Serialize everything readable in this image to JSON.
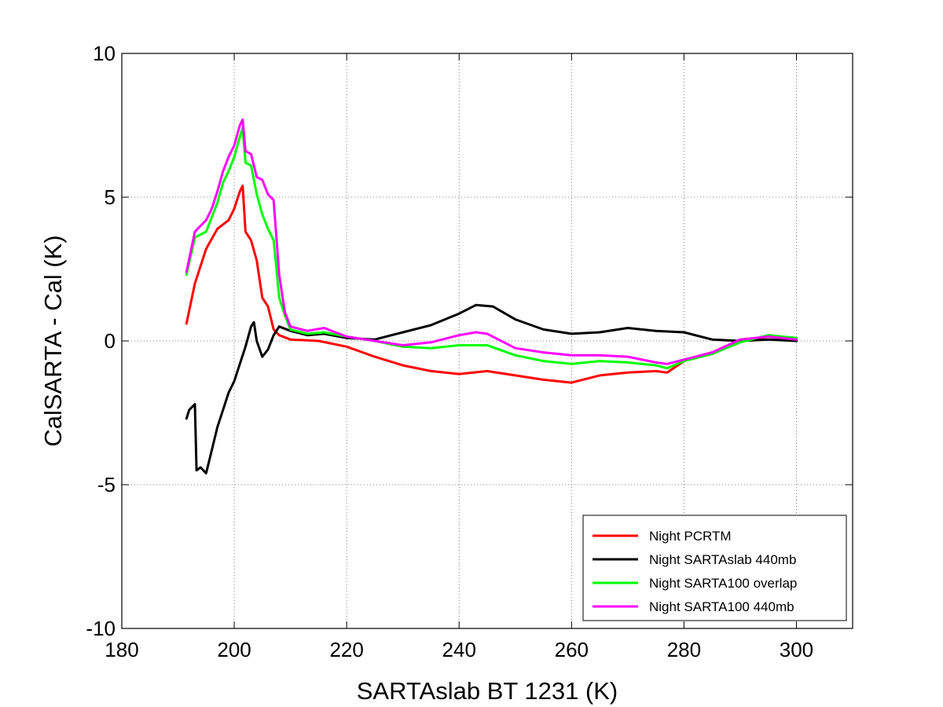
{
  "chart_data": {
    "type": "line",
    "title": "",
    "xlabel": "SARTAslab BT 1231 (K)",
    "ylabel": "CalSARTA - Cal (K)",
    "xlim": [
      180,
      310
    ],
    "ylim": [
      -10,
      10
    ],
    "xticks": [
      180,
      200,
      220,
      240,
      260,
      280,
      300
    ],
    "yticks": [
      -10,
      -5,
      0,
      5,
      10
    ],
    "xtick_labels": [
      "180",
      "200",
      "220",
      "240",
      "260",
      "280",
      "300"
    ],
    "ytick_labels": [
      "-10",
      "-5",
      "0",
      "5",
      "10"
    ],
    "grid": true,
    "legend_position": "bottom-right",
    "series": [
      {
        "name": "Night PCRTM",
        "color": "#ff0000",
        "points": [
          [
            191.5,
            0.6
          ],
          [
            193,
            2.0
          ],
          [
            195,
            3.2
          ],
          [
            197,
            3.9
          ],
          [
            199,
            4.2
          ],
          [
            200,
            4.6
          ],
          [
            201,
            5.2
          ],
          [
            201.5,
            5.4
          ],
          [
            202,
            3.8
          ],
          [
            203,
            3.5
          ],
          [
            204,
            2.8
          ],
          [
            205,
            1.5
          ],
          [
            206,
            1.2
          ],
          [
            207,
            0.4
          ],
          [
            208,
            0.2
          ],
          [
            210,
            0.05
          ],
          [
            215,
            0.0
          ],
          [
            220,
            -0.2
          ],
          [
            225,
            -0.55
          ],
          [
            230,
            -0.85
          ],
          [
            235,
            -1.05
          ],
          [
            240,
            -1.15
          ],
          [
            245,
            -1.05
          ],
          [
            250,
            -1.2
          ],
          [
            255,
            -1.35
          ],
          [
            260,
            -1.45
          ],
          [
            265,
            -1.2
          ],
          [
            270,
            -1.1
          ],
          [
            275,
            -1.05
          ],
          [
            277,
            -1.1
          ],
          [
            280,
            -0.7
          ],
          [
            285,
            -0.4
          ],
          [
            290,
            0.0
          ],
          [
            295,
            0.15
          ],
          [
            300,
            0.05
          ]
        ]
      },
      {
        "name": "Night SARTAslab 440mb",
        "color": "#000000",
        "points": [
          [
            191.5,
            -2.7
          ],
          [
            192,
            -2.4
          ],
          [
            193,
            -2.2
          ],
          [
            193.3,
            -4.5
          ],
          [
            194,
            -4.4
          ],
          [
            195,
            -4.6
          ],
          [
            196,
            -3.8
          ],
          [
            197,
            -3.0
          ],
          [
            198,
            -2.4
          ],
          [
            199,
            -1.8
          ],
          [
            200,
            -1.4
          ],
          [
            201,
            -0.8
          ],
          [
            202,
            -0.2
          ],
          [
            203,
            0.5
          ],
          [
            203.5,
            0.65
          ],
          [
            204,
            0.0
          ],
          [
            205,
            -0.55
          ],
          [
            206,
            -0.3
          ],
          [
            207,
            0.2
          ],
          [
            208,
            0.5
          ],
          [
            210,
            0.35
          ],
          [
            213,
            0.2
          ],
          [
            216,
            0.25
          ],
          [
            220,
            0.1
          ],
          [
            225,
            0.05
          ],
          [
            230,
            0.3
          ],
          [
            235,
            0.55
          ],
          [
            240,
            0.95
          ],
          [
            243,
            1.25
          ],
          [
            246,
            1.2
          ],
          [
            250,
            0.75
          ],
          [
            255,
            0.4
          ],
          [
            260,
            0.25
          ],
          [
            265,
            0.3
          ],
          [
            270,
            0.45
          ],
          [
            275,
            0.35
          ],
          [
            280,
            0.3
          ],
          [
            285,
            0.05
          ],
          [
            290,
            0.0
          ],
          [
            295,
            0.05
          ],
          [
            300,
            0.0
          ]
        ]
      },
      {
        "name": "Night SARTA100 overlap",
        "color": "#00ff00",
        "points": [
          [
            191.5,
            2.3
          ],
          [
            193,
            3.6
          ],
          [
            195,
            3.8
          ],
          [
            196,
            4.3
          ],
          [
            197,
            4.8
          ],
          [
            198,
            5.5
          ],
          [
            199,
            5.9
          ],
          [
            200,
            6.4
          ],
          [
            201,
            7.1
          ],
          [
            201.5,
            7.4
          ],
          [
            202,
            6.2
          ],
          [
            203,
            6.1
          ],
          [
            204,
            5.1
          ],
          [
            205,
            4.4
          ],
          [
            206,
            3.9
          ],
          [
            207,
            3.5
          ],
          [
            208,
            1.5
          ],
          [
            209,
            0.9
          ],
          [
            210,
            0.4
          ],
          [
            213,
            0.25
          ],
          [
            216,
            0.3
          ],
          [
            220,
            0.15
          ],
          [
            225,
            0.0
          ],
          [
            230,
            -0.2
          ],
          [
            235,
            -0.25
          ],
          [
            240,
            -0.15
          ],
          [
            245,
            -0.15
          ],
          [
            250,
            -0.5
          ],
          [
            255,
            -0.7
          ],
          [
            260,
            -0.8
          ],
          [
            265,
            -0.7
          ],
          [
            270,
            -0.75
          ],
          [
            275,
            -0.85
          ],
          [
            277,
            -0.95
          ],
          [
            280,
            -0.7
          ],
          [
            285,
            -0.45
          ],
          [
            290,
            -0.05
          ],
          [
            295,
            0.2
          ],
          [
            300,
            0.1
          ]
        ]
      },
      {
        "name": "Night SARTA100 440mb",
        "color": "#ff00ff",
        "points": [
          [
            191.5,
            2.4
          ],
          [
            193,
            3.8
          ],
          [
            195,
            4.2
          ],
          [
            196,
            4.6
          ],
          [
            197,
            5.2
          ],
          [
            198,
            5.9
          ],
          [
            199,
            6.4
          ],
          [
            200,
            6.8
          ],
          [
            201,
            7.5
          ],
          [
            201.5,
            7.7
          ],
          [
            202,
            6.6
          ],
          [
            203,
            6.5
          ],
          [
            204,
            5.7
          ],
          [
            205,
            5.6
          ],
          [
            206,
            5.1
          ],
          [
            207,
            4.9
          ],
          [
            208,
            2.3
          ],
          [
            209,
            1.0
          ],
          [
            210,
            0.5
          ],
          [
            213,
            0.35
          ],
          [
            216,
            0.45
          ],
          [
            220,
            0.15
          ],
          [
            225,
            0.0
          ],
          [
            230,
            -0.15
          ],
          [
            235,
            -0.05
          ],
          [
            240,
            0.2
          ],
          [
            243,
            0.3
          ],
          [
            245,
            0.25
          ],
          [
            250,
            -0.25
          ],
          [
            255,
            -0.4
          ],
          [
            260,
            -0.5
          ],
          [
            265,
            -0.5
          ],
          [
            270,
            -0.55
          ],
          [
            275,
            -0.75
          ],
          [
            277,
            -0.8
          ],
          [
            280,
            -0.65
          ],
          [
            285,
            -0.4
          ],
          [
            290,
            0.05
          ],
          [
            295,
            0.15
          ],
          [
            300,
            0.05
          ]
        ]
      }
    ]
  }
}
